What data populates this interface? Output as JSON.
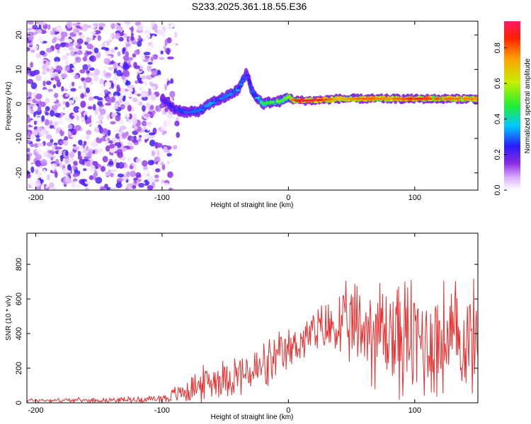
{
  "title": "S233.2025.361.18.55.E36",
  "colors": {
    "snr_line": "#e83030",
    "frame": "#000000",
    "background": "#ffffff"
  },
  "chart_data": [
    {
      "type": "heatmap",
      "name": "spectrogram",
      "xlabel": "Height of straight line (km)",
      "ylabel": "Frequency (Hz)",
      "xlim": [
        -207,
        150
      ],
      "ylim": [
        -25,
        24
      ],
      "xticks": [
        -200,
        -100,
        0,
        100
      ],
      "yticks": [
        -20,
        -10,
        0,
        10,
        20
      ],
      "colorbar": {
        "label": "Normalized spectral amplitude",
        "ticks": [
          0.0,
          0.2,
          0.4,
          0.6,
          0.8
        ],
        "range": [
          0,
          0.95
        ]
      },
      "ridge": {
        "description_points_x": [
          -100,
          -90,
          -80,
          -70,
          -60,
          -50,
          -40,
          -33,
          -28,
          -20,
          -15,
          -10,
          -5,
          0,
          5,
          10,
          20,
          40,
          60,
          80,
          100,
          120,
          150
        ],
        "frequency_hz": [
          1.5,
          -1.5,
          -2.5,
          -2,
          0.5,
          2,
          4,
          9,
          3,
          0,
          0.5,
          0.5,
          1,
          2,
          1,
          1,
          1,
          1.5,
          1.5,
          1.5,
          1.5,
          1.5,
          1.5
        ],
        "amplitude": [
          0.2,
          0.25,
          0.3,
          0.3,
          0.35,
          0.3,
          0.35,
          0.25,
          0.3,
          0.5,
          0.45,
          0.6,
          0.5,
          0.55,
          0.85,
          0.9,
          0.95,
          0.7,
          0.8,
          0.75,
          0.85,
          0.8,
          0.75
        ]
      },
      "noise_region_x": [
        -207,
        -85
      ]
    },
    {
      "type": "line",
      "name": "snr",
      "xlabel": "Height of straight line (km)",
      "ylabel": "SNR (10 * v/v)",
      "xlim": [
        -207,
        150
      ],
      "ylim": [
        0,
        980
      ],
      "xticks": [
        -200,
        -100,
        0,
        100
      ],
      "yticks": [
        0,
        200,
        400,
        600,
        800
      ],
      "envelope_x": [
        -207,
        -150,
        -110,
        -95,
        -85,
        -70,
        -60,
        -50,
        -40,
        -30,
        -20,
        -10,
        0,
        10,
        20,
        30,
        40,
        50,
        60,
        70,
        80,
        90,
        100,
        110,
        120,
        130,
        140,
        150
      ],
      "envelope_base": [
        15,
        15,
        20,
        30,
        60,
        100,
        130,
        150,
        160,
        170,
        200,
        240,
        300,
        360,
        400,
        430,
        440,
        440,
        430,
        420,
        400,
        380,
        360,
        360,
        360,
        360,
        360,
        360
      ],
      "envelope_amp": [
        15,
        15,
        25,
        40,
        80,
        120,
        130,
        140,
        150,
        170,
        180,
        180,
        150,
        150,
        160,
        200,
        240,
        300,
        360,
        400,
        420,
        430,
        440,
        440,
        430,
        420,
        400,
        380
      ]
    }
  ]
}
